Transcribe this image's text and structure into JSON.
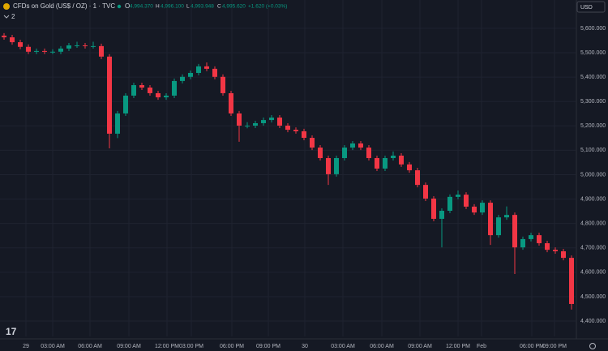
{
  "header": {
    "symbol": "CFDs on Gold (US$ / OZ) · 1 · TVC",
    "o_label": "O",
    "o": "4,994.370",
    "h_label": "H",
    "h": "4,996.100",
    "l_label": "L",
    "l": "4,993.948",
    "c_label": "C",
    "c": "4,995.620",
    "change": "+1.620 (+0.03%)",
    "indicators": "2",
    "currency": "USD"
  },
  "chart_data": {
    "type": "candlestick",
    "up_color": "#089981",
    "down_color": "#f23645",
    "grid": true,
    "x": [
      0,
      1,
      2,
      3,
      4,
      5,
      6,
      7,
      8,
      9,
      10,
      11,
      12,
      13,
      14,
      15,
      16,
      17,
      18,
      19,
      20,
      21,
      22,
      23,
      24,
      25,
      26,
      27,
      28,
      29,
      30,
      31,
      32,
      33,
      34,
      35,
      36,
      37,
      38,
      39,
      40,
      41,
      42,
      43,
      44,
      45,
      46,
      47,
      48,
      49,
      50,
      51,
      52,
      53,
      54,
      55,
      56,
      57,
      58,
      59,
      60,
      61,
      62,
      63,
      64,
      65,
      66,
      67,
      68,
      69,
      70
    ],
    "open": [
      5570,
      5563,
      5543,
      5524,
      5504,
      5507,
      5504,
      5504,
      5517,
      5530,
      5530,
      5527,
      5527,
      5484,
      5168,
      5251,
      5324,
      5367,
      5357,
      5334,
      5317,
      5324,
      5384,
      5401,
      5417,
      5444,
      5434,
      5401,
      5334,
      5251,
      5201,
      5201,
      5211,
      5224,
      5234,
      5201,
      5184,
      5178,
      5151,
      5111,
      5068,
      5002,
      5068,
      5111,
      5128,
      5111,
      5068,
      5025,
      5068,
      5078,
      5042,
      5018,
      4958,
      4902,
      4819,
      4852,
      4909,
      4918,
      4869,
      4845,
      4885,
      4752,
      4825,
      4835,
      4702,
      4736,
      4752,
      4719,
      4692,
      4686,
      4659
    ],
    "high": [
      5580,
      5573,
      5553,
      5534,
      5517,
      5517,
      5514,
      5527,
      5540,
      5545,
      5540,
      5545,
      5537,
      5494,
      5261,
      5334,
      5377,
      5377,
      5367,
      5344,
      5334,
      5394,
      5411,
      5427,
      5454,
      5460,
      5444,
      5411,
      5344,
      5261,
      5215,
      5221,
      5234,
      5244,
      5244,
      5211,
      5194,
      5188,
      5161,
      5121,
      5078,
      5078,
      5121,
      5138,
      5138,
      5121,
      5078,
      5078,
      5095,
      5088,
      5052,
      5028,
      4968,
      4912,
      4862,
      4919,
      4935,
      4928,
      4879,
      4895,
      4895,
      4835,
      4870,
      4845,
      4746,
      4762,
      4762,
      4729,
      4702,
      4696,
      4669
    ],
    "low": [
      5553,
      5533,
      5514,
      5494,
      5494,
      5494,
      5494,
      5494,
      5507,
      5520,
      5517,
      5517,
      5474,
      5108,
      5150,
      5241,
      5314,
      5347,
      5324,
      5307,
      5307,
      5314,
      5374,
      5391,
      5407,
      5424,
      5391,
      5324,
      5241,
      5135,
      5190,
      5191,
      5201,
      5214,
      5191,
      5174,
      5168,
      5141,
      5101,
      5058,
      4958,
      4992,
      5058,
      5101,
      5101,
      5058,
      5015,
      5015,
      5058,
      5032,
      5008,
      4948,
      4892,
      4809,
      4702,
      4842,
      4899,
      4859,
      4835,
      4835,
      4712,
      4742,
      4815,
      4593,
      4692,
      4726,
      4709,
      4682,
      4676,
      4649,
      4447
    ],
    "close": [
      5563,
      5543,
      5524,
      5504,
      5507,
      5504,
      5504,
      5517,
      5530,
      5530,
      5527,
      5527,
      5484,
      5168,
      5251,
      5324,
      5367,
      5357,
      5334,
      5317,
      5324,
      5384,
      5401,
      5417,
      5444,
      5434,
      5401,
      5334,
      5251,
      5201,
      5201,
      5211,
      5224,
      5234,
      5201,
      5184,
      5178,
      5151,
      5111,
      5068,
      5002,
      5068,
      5111,
      5128,
      5111,
      5068,
      5025,
      5068,
      5078,
      5042,
      5018,
      4958,
      4902,
      4819,
      4852,
      4909,
      4918,
      4869,
      4845,
      4885,
      4752,
      4825,
      4835,
      4702,
      4736,
      4752,
      4719,
      4692,
      4686,
      4659,
      4470
    ],
    "xlim": [
      -0.5,
      70.5
    ],
    "xticks": [
      {
        "value": 2.7,
        "label": "29"
      },
      {
        "value": 6.0,
        "label": "03:00 AM"
      },
      {
        "value": 10.6,
        "label": "06:00 AM"
      },
      {
        "value": 15.4,
        "label": "09:00 AM"
      },
      {
        "value": 20.1,
        "label": "12:00 PM"
      },
      {
        "value": 23.1,
        "label": "03:00 PM"
      },
      {
        "value": 28.1,
        "label": "06:00 PM"
      },
      {
        "value": 32.6,
        "label": "09:00 PM"
      },
      {
        "value": 37.1,
        "label": "30"
      },
      {
        "value": 41.8,
        "label": "03:00 AM"
      },
      {
        "value": 46.6,
        "label": "06:00 AM"
      },
      {
        "value": 51.3,
        "label": "09:00 AM"
      },
      {
        "value": 56.0,
        "label": "12:00 PM"
      },
      {
        "value": 58.9,
        "label": "Feb"
      },
      {
        "value": 65.1,
        "label": "06:00 PM"
      },
      {
        "value": 67.9,
        "label": "09:00 PM"
      }
    ],
    "ylim": [
      4337,
      5716
    ],
    "yticks": [
      {
        "value": 5600,
        "label": "5,600.000"
      },
      {
        "value": 5500,
        "label": "5,500.000"
      },
      {
        "value": 5400,
        "label": "5,400.000"
      },
      {
        "value": 5300,
        "label": "5,300.000"
      },
      {
        "value": 5200,
        "label": "5,200.000"
      },
      {
        "value": 5100,
        "label": "5,100.000"
      },
      {
        "value": 5000,
        "label": "5,000.000"
      },
      {
        "value": 4900,
        "label": "4,900.000"
      },
      {
        "value": 4800,
        "label": "4,800.000"
      },
      {
        "value": 4700,
        "label": "4,700.000"
      },
      {
        "value": 4600,
        "label": "4,600.000"
      },
      {
        "value": 4500,
        "label": "4,500.000"
      },
      {
        "value": 4400,
        "label": "4,400.000"
      }
    ]
  }
}
